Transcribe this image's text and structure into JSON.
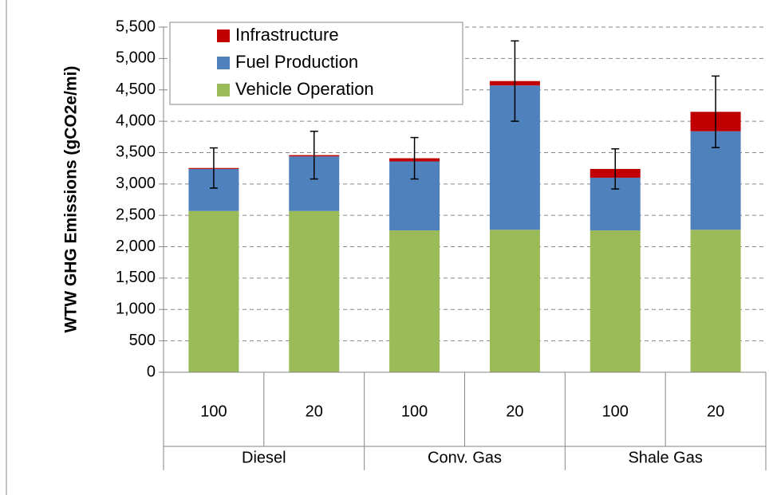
{
  "chart_data": {
    "type": "stacked_bar",
    "y_label": "WTW GHG Emissions (gCO2e/mi)",
    "categories": [
      "100",
      "20",
      "100",
      "20",
      "100",
      "20"
    ],
    "groups": [
      "Diesel",
      "Conv. Gas",
      "Shale Gas"
    ],
    "series": [
      {
        "name": "Vehicle Operation",
        "color": "#9bbb59",
        "values": [
          2570,
          2570,
          2260,
          2270,
          2260,
          2270
        ]
      },
      {
        "name": "Fuel Production",
        "color": "#4f81bd",
        "values": [
          670,
          870,
          1100,
          2300,
          840,
          1570
        ]
      },
      {
        "name": "Infrastructure",
        "color": "#c00000",
        "values": [
          15,
          20,
          50,
          70,
          140,
          310
        ]
      }
    ],
    "errors": [
      320,
      380,
      330,
      640,
      320,
      570
    ],
    "ylim": [
      0,
      5500
    ],
    "yticks": [
      0,
      500,
      {
        "value": 1000,
        "label": "1,000"
      },
      {
        "value": 1500,
        "label": "1,500"
      },
      {
        "value": 2000,
        "label": "2,000"
      },
      {
        "value": 2500,
        "label": "2,500"
      },
      {
        "value": 3000,
        "label": "3,000"
      },
      {
        "value": 3500,
        "label": "3,500"
      },
      {
        "value": 4000,
        "label": "4,000"
      },
      {
        "value": 4500,
        "label": "4,500"
      },
      {
        "value": 5000,
        "label": "5,000"
      },
      {
        "value": 5500,
        "label": "5,500"
      }
    ],
    "grid": true,
    "legend": "upper left"
  }
}
